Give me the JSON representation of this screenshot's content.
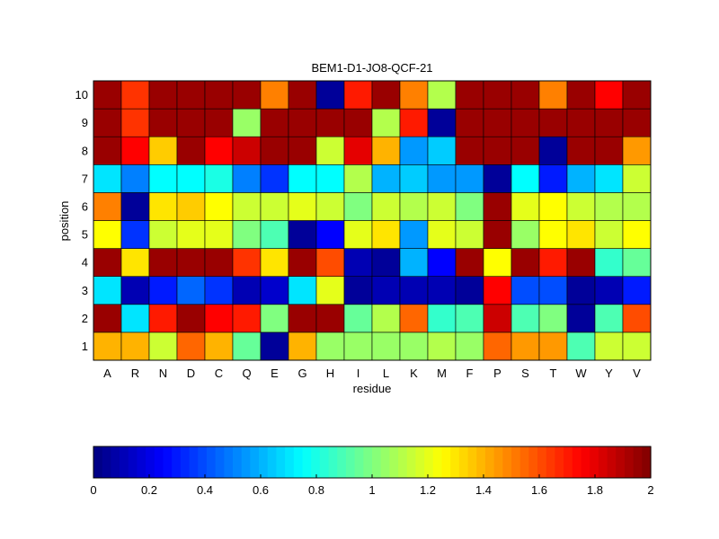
{
  "chart_data": {
    "type": "heatmap",
    "title": "BEM1-D1-JO8-QCF-21",
    "xlabel": "residue",
    "ylabel": "position",
    "x_categories": [
      "A",
      "R",
      "N",
      "D",
      "C",
      "Q",
      "E",
      "G",
      "H",
      "I",
      "L",
      "K",
      "M",
      "F",
      "P",
      "S",
      "T",
      "W",
      "Y",
      "V"
    ],
    "y_categories": [
      "1",
      "2",
      "3",
      "4",
      "5",
      "6",
      "7",
      "8",
      "9",
      "10"
    ],
    "values": [
      [
        1.4,
        1.4,
        1.15,
        1.55,
        1.4,
        0.95,
        0.05,
        1.4,
        1.05,
        1.05,
        1.05,
        1.05,
        1.1,
        1.05,
        1.55,
        1.45,
        1.45,
        0.9,
        1.15,
        1.15
      ],
      [
        1.95,
        0.7,
        1.7,
        1.95,
        1.75,
        1.7,
        1.0,
        1.95,
        1.95,
        0.95,
        1.1,
        1.55,
        0.85,
        0.9,
        1.85,
        0.9,
        1.0,
        0.05,
        0.9,
        1.6
      ],
      [
        0.7,
        0.1,
        0.3,
        0.45,
        0.35,
        0.1,
        0.15,
        0.7,
        1.2,
        0.05,
        0.1,
        0.1,
        0.1,
        0.05,
        1.75,
        0.4,
        0.4,
        0.05,
        0.1,
        0.3
      ],
      [
        1.95,
        1.3,
        1.95,
        1.95,
        1.95,
        1.65,
        1.3,
        1.95,
        1.6,
        0.1,
        0.05,
        0.6,
        0.25,
        1.95,
        1.25,
        1.95,
        1.7,
        1.95,
        0.85,
        0.95
      ],
      [
        1.25,
        0.35,
        1.15,
        1.2,
        1.2,
        1.0,
        0.9,
        0.05,
        0.25,
        1.2,
        1.3,
        0.55,
        1.2,
        1.15,
        1.95,
        1.05,
        1.25,
        1.3,
        1.15,
        1.25
      ],
      [
        1.5,
        0.05,
        1.3,
        1.35,
        1.25,
        1.15,
        1.15,
        1.2,
        1.15,
        1.0,
        1.15,
        1.1,
        1.15,
        1.0,
        1.95,
        1.2,
        1.25,
        1.15,
        1.1,
        1.1
      ],
      [
        0.7,
        0.5,
        0.75,
        0.75,
        0.8,
        0.5,
        0.35,
        0.75,
        0.75,
        1.1,
        0.6,
        0.65,
        0.55,
        0.55,
        0.05,
        0.75,
        0.3,
        0.6,
        0.7,
        1.15
      ],
      [
        1.95,
        1.75,
        1.35,
        1.95,
        1.75,
        1.85,
        1.95,
        1.95,
        1.15,
        1.8,
        1.4,
        0.55,
        0.65,
        1.95,
        1.95,
        1.95,
        0.05,
        1.95,
        1.95,
        1.45
      ],
      [
        1.95,
        1.65,
        1.95,
        1.95,
        1.95,
        1.05,
        1.95,
        1.95,
        1.95,
        1.95,
        1.1,
        1.7,
        0.05,
        1.95,
        1.95,
        1.95,
        1.95,
        1.95,
        1.95,
        1.95
      ],
      [
        1.95,
        1.65,
        1.95,
        1.95,
        1.95,
        1.95,
        1.5,
        1.95,
        0.05,
        1.7,
        1.95,
        1.5,
        1.1,
        1.95,
        1.95,
        1.95,
        1.5,
        1.95,
        1.75,
        1.95
      ]
    ],
    "colorbar": {
      "colormap": "jet",
      "range": [
        0,
        2
      ],
      "ticks": [
        "0",
        "0.2",
        "0.4",
        "0.6",
        "0.8",
        "1",
        "1.2",
        "1.4",
        "1.6",
        "1.8",
        "2"
      ]
    }
  }
}
